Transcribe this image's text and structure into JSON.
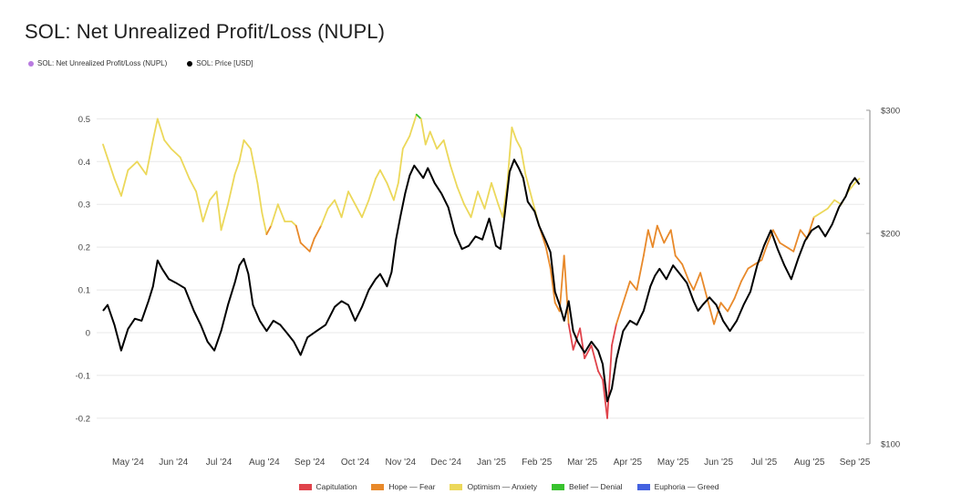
{
  "title": "SOL: Net Unrealized Profit/Loss (NUPL)",
  "legend_top": [
    {
      "label": "SOL: Net Unrealized Profit/Loss (NUPL)",
      "color": "#b97be0"
    },
    {
      "label": "SOL: Price [USD]",
      "color": "#000000"
    }
  ],
  "legend_bottom": [
    {
      "label": "Capitulation",
      "color": "#e0434b"
    },
    {
      "label": "Hope — Fear",
      "color": "#e8892a"
    },
    {
      "label": "Optimism — Anxiety",
      "color": "#ecd85a"
    },
    {
      "label": "Belief — Denial",
      "color": "#38c22e"
    },
    {
      "label": "Euphoria — Greed",
      "color": "#4462e0"
    }
  ],
  "chart_data": {
    "type": "line",
    "title": "SOL: Net Unrealized Profit/Loss (NUPL)",
    "x_ticks": [
      "May '24",
      "Jun '24",
      "Jul '24",
      "Aug '24",
      "Sep '24",
      "Oct '24",
      "Nov '24",
      "Dec '24",
      "Jan '25",
      "Feb '25",
      "Mar '25",
      "Apr '25",
      "May '25",
      "Jun '25",
      "Jul '25",
      "Aug '25",
      "Sep '25"
    ],
    "y_left_ticks": [
      "0.5",
      "0.4",
      "0.3",
      "0.2",
      "0.1",
      "0",
      "-0.1",
      "-0.2"
    ],
    "y_left_values": [
      0.5,
      0.4,
      0.3,
      0.2,
      0.1,
      0,
      -0.1,
      -0.2
    ],
    "y_right_ticks": [
      "$300",
      "$200",
      "$100"
    ],
    "y_right_values": [
      300,
      200,
      100
    ],
    "y_right_scale": "log",
    "ylim_left": [
      -0.26,
      0.52
    ],
    "ylim_right": [
      100,
      300
    ],
    "x_months_range": [
      0,
      16.7
    ],
    "grid": "horizontal",
    "series": [
      {
        "name": "SOL: Net Unrealized Profit/Loss (NUPL)",
        "axis": "left",
        "points": [
          [
            0.0,
            0.44
          ],
          [
            0.25,
            0.36
          ],
          [
            0.4,
            0.32
          ],
          [
            0.55,
            0.38
          ],
          [
            0.75,
            0.4
          ],
          [
            0.95,
            0.37
          ],
          [
            1.1,
            0.45
          ],
          [
            1.2,
            0.5
          ],
          [
            1.35,
            0.45
          ],
          [
            1.5,
            0.43
          ],
          [
            1.7,
            0.41
          ],
          [
            1.9,
            0.36
          ],
          [
            2.05,
            0.33
          ],
          [
            2.2,
            0.26
          ],
          [
            2.35,
            0.31
          ],
          [
            2.5,
            0.33
          ],
          [
            2.6,
            0.24
          ],
          [
            2.75,
            0.3
          ],
          [
            2.9,
            0.37
          ],
          [
            3.0,
            0.4
          ],
          [
            3.1,
            0.45
          ],
          [
            3.25,
            0.43
          ],
          [
            3.4,
            0.35
          ],
          [
            3.5,
            0.28
          ],
          [
            3.6,
            0.23
          ],
          [
            3.7,
            0.25
          ],
          [
            3.85,
            0.3
          ],
          [
            4.0,
            0.26
          ],
          [
            4.15,
            0.26
          ],
          [
            4.25,
            0.25
          ],
          [
            4.35,
            0.21
          ],
          [
            4.45,
            0.2
          ],
          [
            4.55,
            0.19
          ],
          [
            4.65,
            0.22
          ],
          [
            4.8,
            0.25
          ],
          [
            4.95,
            0.29
          ],
          [
            5.1,
            0.31
          ],
          [
            5.25,
            0.27
          ],
          [
            5.4,
            0.33
          ],
          [
            5.55,
            0.3
          ],
          [
            5.7,
            0.27
          ],
          [
            5.85,
            0.31
          ],
          [
            6.0,
            0.36
          ],
          [
            6.1,
            0.38
          ],
          [
            6.25,
            0.35
          ],
          [
            6.4,
            0.31
          ],
          [
            6.5,
            0.35
          ],
          [
            6.6,
            0.43
          ],
          [
            6.75,
            0.46
          ],
          [
            6.9,
            0.51
          ],
          [
            7.0,
            0.5
          ],
          [
            7.1,
            0.44
          ],
          [
            7.2,
            0.47
          ],
          [
            7.35,
            0.43
          ],
          [
            7.5,
            0.45
          ],
          [
            7.65,
            0.39
          ],
          [
            7.8,
            0.34
          ],
          [
            7.95,
            0.3
          ],
          [
            8.1,
            0.27
          ],
          [
            8.25,
            0.33
          ],
          [
            8.4,
            0.29
          ],
          [
            8.55,
            0.35
          ],
          [
            8.7,
            0.3
          ],
          [
            8.8,
            0.27
          ],
          [
            8.9,
            0.35
          ],
          [
            9.0,
            0.48
          ],
          [
            9.1,
            0.45
          ],
          [
            9.2,
            0.43
          ],
          [
            9.3,
            0.37
          ],
          [
            9.4,
            0.33
          ],
          [
            9.5,
            0.29
          ],
          [
            9.6,
            0.25
          ],
          [
            9.75,
            0.2
          ],
          [
            9.85,
            0.15
          ],
          [
            9.95,
            0.07
          ],
          [
            10.05,
            0.05
          ],
          [
            10.15,
            0.18
          ],
          [
            10.25,
            0.02
          ],
          [
            10.35,
            -0.04
          ],
          [
            10.5,
            0.01
          ],
          [
            10.6,
            -0.06
          ],
          [
            10.75,
            -0.03
          ],
          [
            10.9,
            -0.09
          ],
          [
            11.0,
            -0.11
          ],
          [
            11.1,
            -0.2
          ],
          [
            11.2,
            -0.03
          ],
          [
            11.3,
            0.02
          ],
          [
            11.45,
            0.07
          ],
          [
            11.6,
            0.12
          ],
          [
            11.75,
            0.1
          ],
          [
            11.9,
            0.18
          ],
          [
            12.0,
            0.24
          ],
          [
            12.1,
            0.2
          ],
          [
            12.2,
            0.25
          ],
          [
            12.35,
            0.21
          ],
          [
            12.5,
            0.24
          ],
          [
            12.6,
            0.18
          ],
          [
            12.75,
            0.16
          ],
          [
            12.9,
            0.12
          ],
          [
            13.0,
            0.1
          ],
          [
            13.15,
            0.14
          ],
          [
            13.3,
            0.08
          ],
          [
            13.45,
            0.02
          ],
          [
            13.6,
            0.07
          ],
          [
            13.75,
            0.05
          ],
          [
            13.9,
            0.08
          ],
          [
            14.05,
            0.12
          ],
          [
            14.2,
            0.15
          ],
          [
            14.35,
            0.16
          ],
          [
            14.5,
            0.17
          ],
          [
            14.6,
            0.2
          ],
          [
            14.75,
            0.24
          ],
          [
            14.9,
            0.21
          ],
          [
            15.05,
            0.2
          ],
          [
            15.2,
            0.19
          ],
          [
            15.35,
            0.24
          ],
          [
            15.5,
            0.22
          ],
          [
            15.65,
            0.27
          ],
          [
            15.8,
            0.28
          ],
          [
            15.95,
            0.29
          ],
          [
            16.1,
            0.31
          ],
          [
            16.25,
            0.3
          ],
          [
            16.4,
            0.33
          ],
          [
            16.55,
            0.35
          ],
          [
            16.65,
            0.36
          ]
        ]
      },
      {
        "name": "SOL: Price [USD]",
        "axis": "right",
        "color": "#000000",
        "points": [
          [
            0.0,
            155
          ],
          [
            0.1,
            158
          ],
          [
            0.25,
            148
          ],
          [
            0.4,
            136
          ],
          [
            0.55,
            146
          ],
          [
            0.7,
            151
          ],
          [
            0.85,
            150
          ],
          [
            1.0,
            160
          ],
          [
            1.1,
            168
          ],
          [
            1.2,
            183
          ],
          [
            1.3,
            178
          ],
          [
            1.45,
            172
          ],
          [
            1.6,
            170
          ],
          [
            1.8,
            167
          ],
          [
            2.0,
            155
          ],
          [
            2.15,
            148
          ],
          [
            2.3,
            140
          ],
          [
            2.45,
            136
          ],
          [
            2.6,
            145
          ],
          [
            2.75,
            158
          ],
          [
            2.9,
            170
          ],
          [
            3.0,
            180
          ],
          [
            3.1,
            184
          ],
          [
            3.2,
            175
          ],
          [
            3.3,
            158
          ],
          [
            3.45,
            150
          ],
          [
            3.6,
            145
          ],
          [
            3.75,
            150
          ],
          [
            3.9,
            148
          ],
          [
            4.05,
            144
          ],
          [
            4.2,
            140
          ],
          [
            4.35,
            134
          ],
          [
            4.5,
            142
          ],
          [
            4.7,
            145
          ],
          [
            4.9,
            148
          ],
          [
            5.1,
            157
          ],
          [
            5.25,
            160
          ],
          [
            5.4,
            158
          ],
          [
            5.55,
            150
          ],
          [
            5.7,
            157
          ],
          [
            5.85,
            166
          ],
          [
            6.0,
            172
          ],
          [
            6.1,
            175
          ],
          [
            6.25,
            168
          ],
          [
            6.35,
            176
          ],
          [
            6.45,
            196
          ],
          [
            6.55,
            212
          ],
          [
            6.65,
            228
          ],
          [
            6.75,
            242
          ],
          [
            6.85,
            250
          ],
          [
            6.95,
            245
          ],
          [
            7.05,
            240
          ],
          [
            7.15,
            248
          ],
          [
            7.3,
            236
          ],
          [
            7.45,
            228
          ],
          [
            7.6,
            218
          ],
          [
            7.75,
            200
          ],
          [
            7.9,
            190
          ],
          [
            8.05,
            192
          ],
          [
            8.2,
            198
          ],
          [
            8.35,
            196
          ],
          [
            8.5,
            210
          ],
          [
            8.65,
            192
          ],
          [
            8.75,
            190
          ],
          [
            8.85,
            215
          ],
          [
            8.95,
            245
          ],
          [
            9.05,
            255
          ],
          [
            9.15,
            248
          ],
          [
            9.25,
            240
          ],
          [
            9.35,
            222
          ],
          [
            9.5,
            215
          ],
          [
            9.6,
            205
          ],
          [
            9.75,
            195
          ],
          [
            9.85,
            188
          ],
          [
            9.95,
            165
          ],
          [
            10.05,
            158
          ],
          [
            10.15,
            150
          ],
          [
            10.25,
            160
          ],
          [
            10.35,
            145
          ],
          [
            10.45,
            140
          ],
          [
            10.6,
            135
          ],
          [
            10.75,
            140
          ],
          [
            10.9,
            136
          ],
          [
            11.0,
            130
          ],
          [
            11.1,
            115
          ],
          [
            11.2,
            120
          ],
          [
            11.3,
            132
          ],
          [
            11.45,
            145
          ],
          [
            11.6,
            150
          ],
          [
            11.75,
            148
          ],
          [
            11.9,
            155
          ],
          [
            12.05,
            168
          ],
          [
            12.15,
            174
          ],
          [
            12.25,
            178
          ],
          [
            12.4,
            172
          ],
          [
            12.55,
            180
          ],
          [
            12.7,
            175
          ],
          [
            12.85,
            170
          ],
          [
            13.0,
            160
          ],
          [
            13.1,
            155
          ],
          [
            13.2,
            158
          ],
          [
            13.35,
            162
          ],
          [
            13.5,
            158
          ],
          [
            13.65,
            150
          ],
          [
            13.8,
            145
          ],
          [
            13.95,
            150
          ],
          [
            14.1,
            158
          ],
          [
            14.25,
            165
          ],
          [
            14.4,
            180
          ],
          [
            14.55,
            192
          ],
          [
            14.7,
            202
          ],
          [
            14.85,
            190
          ],
          [
            15.0,
            180
          ],
          [
            15.15,
            172
          ],
          [
            15.3,
            184
          ],
          [
            15.45,
            195
          ],
          [
            15.6,
            202
          ],
          [
            15.75,
            205
          ],
          [
            15.9,
            198
          ],
          [
            16.05,
            206
          ],
          [
            16.2,
            218
          ],
          [
            16.35,
            226
          ],
          [
            16.45,
            235
          ],
          [
            16.55,
            240
          ],
          [
            16.65,
            235
          ]
        ]
      }
    ]
  }
}
